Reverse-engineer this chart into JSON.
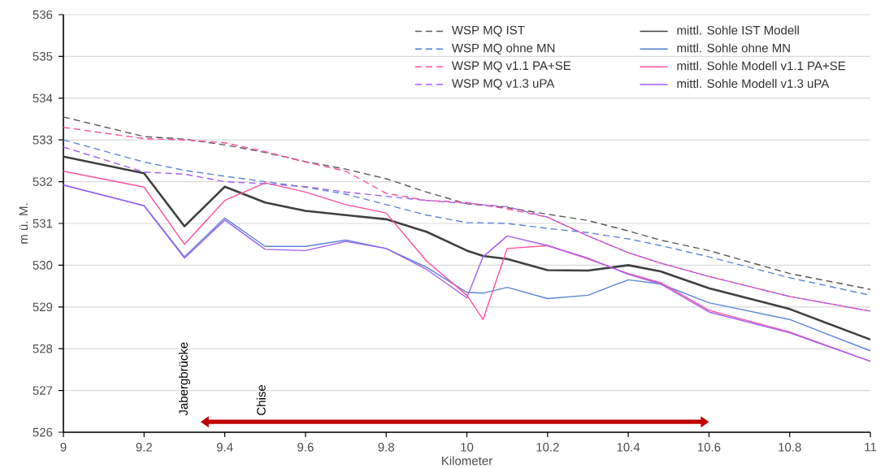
{
  "chart_data": {
    "type": "line",
    "xlabel": "Kilometer",
    "ylabel": "m ü. M.",
    "xlim": [
      9,
      11
    ],
    "xticks": [
      9,
      9.2,
      9.4,
      9.6,
      9.8,
      10,
      10.2,
      10.4,
      10.6,
      10.8,
      11
    ],
    "ylim": [
      526,
      536
    ],
    "yticks": [
      526,
      527,
      528,
      529,
      530,
      531,
      532,
      533,
      534,
      535,
      536
    ],
    "grid": "y",
    "legend": "top right",
    "series": [
      {
        "name": "WSP MQ IST",
        "color": "#595959",
        "line_style": "dashed",
        "x": [
          9,
          9.2,
          9.3,
          9.4,
          9.5,
          9.6,
          9.7,
          9.8,
          9.9,
          10,
          10.1,
          10.2,
          10.3,
          10.4,
          10.48,
          10.6,
          10.8,
          11
        ],
        "values": [
          533.55,
          533.08,
          533.02,
          532.88,
          532.7,
          532.48,
          532.3,
          532.07,
          531.75,
          531.47,
          531.38,
          531.22,
          531.07,
          530.82,
          530.6,
          530.35,
          529.8,
          529.42
        ]
      },
      {
        "name": "mittl. Sohle IST Modell",
        "color": "#404040",
        "line_style": "solid",
        "x": [
          9,
          9.2,
          9.3,
          9.4,
          9.5,
          9.6,
          9.7,
          9.8,
          9.9,
          10,
          10.04,
          10.1,
          10.2,
          10.3,
          10.4,
          10.48,
          10.6,
          10.8,
          11
        ],
        "values": [
          532.6,
          532.2,
          530.93,
          531.88,
          531.5,
          531.3,
          531.2,
          531.1,
          530.8,
          530.35,
          530.22,
          530.15,
          529.88,
          529.87,
          530.0,
          529.85,
          529.45,
          528.95,
          528.22
        ]
      },
      {
        "name": "WSP MQ ohne MN",
        "color": "#5b86d6",
        "line_style": "dashed",
        "x": [
          9,
          9.2,
          9.3,
          9.4,
          9.5,
          9.6,
          9.7,
          9.8,
          9.9,
          10,
          10.1,
          10.2,
          10.3,
          10.4,
          10.48,
          10.6,
          10.8,
          11
        ],
        "values": [
          533.0,
          532.47,
          532.27,
          532.13,
          532.0,
          531.87,
          531.7,
          531.45,
          531.2,
          531.02,
          531.0,
          530.88,
          530.78,
          530.63,
          530.47,
          530.2,
          529.7,
          529.28
        ]
      },
      {
        "name": "mittl. Sohle ohne MN",
        "color": "#5b86d6",
        "line_style": "solid",
        "x": [
          9,
          9.2,
          9.3,
          9.4,
          9.5,
          9.6,
          9.7,
          9.8,
          9.9,
          10,
          10.04,
          10.1,
          10.2,
          10.3,
          10.4,
          10.48,
          10.6,
          10.8,
          11
        ],
        "values": [
          531.92,
          531.43,
          530.2,
          531.13,
          530.45,
          530.45,
          530.6,
          530.4,
          529.95,
          529.35,
          529.33,
          529.47,
          529.2,
          529.28,
          529.65,
          529.55,
          529.1,
          528.7,
          527.95
        ]
      },
      {
        "name": "WSP MQ v1.1 PA+SE",
        "color": "#ff4fa0",
        "line_style": "dashed",
        "x": [
          9,
          9.2,
          9.3,
          9.4,
          9.5,
          9.6,
          9.7,
          9.8,
          9.9,
          10,
          10.1,
          10.2,
          10.3,
          10.4,
          10.48,
          10.6,
          10.8,
          11
        ],
        "values": [
          533.3,
          533.03,
          533.0,
          532.93,
          532.72,
          532.47,
          532.25,
          531.72,
          531.55,
          531.5,
          531.35,
          531.15,
          530.7,
          530.3,
          530.05,
          529.73,
          529.25,
          528.9
        ]
      },
      {
        "name": "mittl. Sohle Modell v1.1 PA+SE",
        "color": "#ff4fa0",
        "line_style": "solid",
        "x": [
          9,
          9.2,
          9.3,
          9.4,
          9.5,
          9.6,
          9.7,
          9.8,
          9.9,
          10,
          10.04,
          10.1,
          10.2,
          10.3,
          10.4,
          10.48,
          10.6,
          10.8,
          11
        ],
        "values": [
          532.25,
          531.87,
          530.5,
          531.55,
          531.97,
          531.75,
          531.45,
          531.25,
          530.1,
          529.28,
          528.7,
          530.4,
          530.47,
          530.15,
          529.8,
          529.58,
          528.92,
          528.4,
          527.7
        ]
      },
      {
        "name": "WSP MQ v1.3 uPA",
        "color": "#a35df0",
        "line_style": "dashed",
        "x": [
          9,
          9.2,
          9.3,
          9.4,
          9.5,
          9.6,
          9.7,
          9.8,
          9.9,
          10,
          10.1,
          10.2,
          10.3,
          10.4,
          10.48,
          10.6,
          10.8,
          11
        ],
        "values": [
          532.83,
          532.23,
          532.18,
          532.0,
          531.95,
          531.88,
          531.75,
          531.65,
          531.55,
          531.48,
          531.4,
          531.15,
          530.7,
          530.3,
          530.05,
          529.73,
          529.25,
          528.9
        ]
      },
      {
        "name": "mittl. Sohle Modell v1.3 uPA",
        "color": "#a35df0",
        "line_style": "solid",
        "x": [
          9,
          9.2,
          9.3,
          9.4,
          9.5,
          9.6,
          9.7,
          9.8,
          9.9,
          10,
          10.04,
          10.1,
          10.2,
          10.3,
          10.4,
          10.48,
          10.6,
          10.8,
          11
        ],
        "values": [
          531.92,
          531.42,
          530.17,
          531.08,
          530.38,
          530.35,
          530.57,
          530.4,
          529.9,
          529.22,
          530.2,
          530.7,
          530.47,
          530.17,
          529.78,
          529.55,
          528.88,
          528.38,
          527.7
        ]
      }
    ],
    "annotations": [
      "Jabergbrücke",
      "Chise"
    ]
  }
}
